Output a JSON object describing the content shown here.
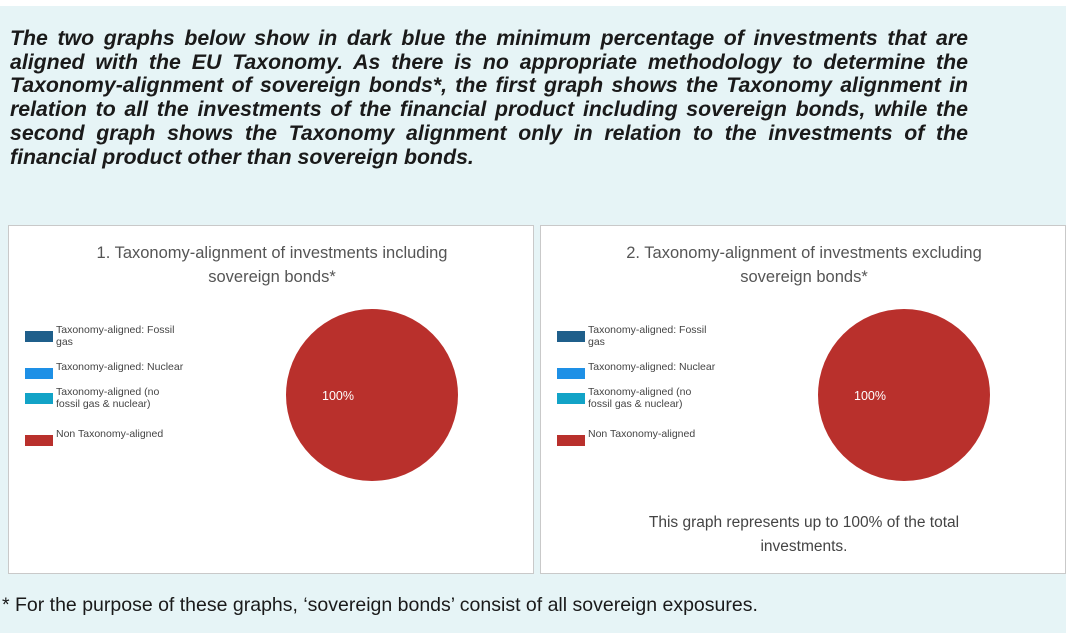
{
  "intro_text": "The two graphs below show in dark blue the minimum percentage of investments that are aligned with the EU Taxonomy. As there is no appropriate methodology to determine the Taxonomy-alignment of sovereign bonds*, the first graph shows the Taxonomy alignment in relation to all the investments of the financial product including sovereign bonds, while the second graph shows the Taxonomy alignment only in relation to the investments of the financial product other than sovereign bonds.",
  "footnote": "* For the purpose of these graphs, ‘sovereign bonds’ consist of all sovereign exposures.",
  "chart_data": [
    {
      "type": "pie",
      "title": [
        "1. Taxonomy-alignment of investments including",
        "sovereign bonds*"
      ],
      "legend_position": "left",
      "categories": [
        "Taxonomy-aligned: Fossil gas",
        "Taxonomy-aligned: Nuclear",
        "Taxonomy-aligned (no fossil gas & nuclear)",
        "Non Taxonomy-aligned"
      ],
      "legend_lines": [
        [
          "Taxonomy-aligned: Fossil",
          "gas"
        ],
        [
          "Taxonomy-aligned: Nuclear"
        ],
        [
          "Taxonomy-aligned (no",
          "fossil gas & nuclear)"
        ],
        [
          "Non Taxonomy-aligned"
        ]
      ],
      "values": [
        0,
        0,
        0,
        100
      ],
      "data_labels": [
        "",
        "",
        "",
        "100%"
      ],
      "colors": [
        "#1f5f8b",
        "#1e90e6",
        "#12a3c7",
        "#b9302c"
      ],
      "note": []
    },
    {
      "type": "pie",
      "title": [
        "2. Taxonomy-alignment of investments excluding",
        "sovereign bonds*"
      ],
      "legend_position": "left",
      "categories": [
        "Taxonomy-aligned: Fossil gas",
        "Taxonomy-aligned: Nuclear",
        "Taxonomy-aligned (no fossil gas & nuclear)",
        "Non Taxonomy-aligned"
      ],
      "legend_lines": [
        [
          "Taxonomy-aligned: Fossil",
          "gas"
        ],
        [
          "Taxonomy-aligned: Nuclear"
        ],
        [
          "Taxonomy-aligned (no",
          "fossil gas & nuclear)"
        ],
        [
          "Non Taxonomy-aligned"
        ]
      ],
      "values": [
        0,
        0,
        0,
        100
      ],
      "data_labels": [
        "",
        "",
        "",
        "100%"
      ],
      "colors": [
        "#1f5f8b",
        "#1e90e6",
        "#12a3c7",
        "#b9302c"
      ],
      "note": [
        "This graph represents up to 100% of the total",
        "investments."
      ]
    }
  ]
}
